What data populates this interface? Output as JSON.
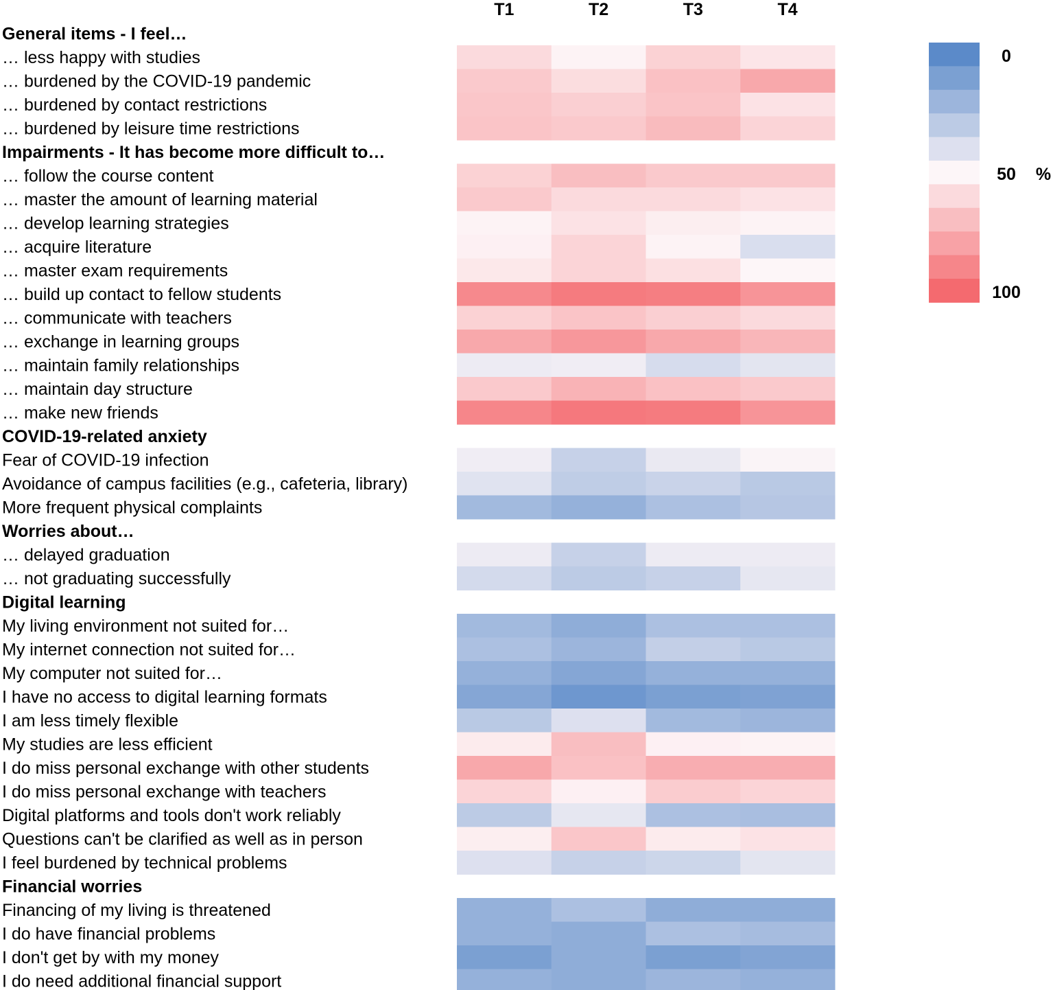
{
  "chart_data": {
    "type": "heatmap",
    "columns": [
      "T1",
      "T2",
      "T3",
      "T4"
    ],
    "value_range": [
      0,
      100
    ],
    "unit": "%",
    "legend": {
      "min_label": "0",
      "mid_label": "50",
      "max_label": "100",
      "unit_label": "%",
      "position": "right",
      "steps": 11
    },
    "color_scale": {
      "low": "#5b8ac9",
      "mid": "#fdf6f8",
      "high": "#f46a6f"
    },
    "rows": [
      {
        "type": "header",
        "label": "General items - I feel…"
      },
      {
        "type": "row",
        "label": "… less happy with studies",
        "values": [
          60,
          51,
          63,
          56
        ]
      },
      {
        "type": "row",
        "label": "… burdened by the COVID-19 pandemic",
        "values": [
          66,
          59,
          69,
          78
        ]
      },
      {
        "type": "row",
        "label": "… burdened by contact restrictions",
        "values": [
          67,
          64,
          68,
          57
        ]
      },
      {
        "type": "row",
        "label": "… burdened by leisure time restrictions",
        "values": [
          68,
          66,
          71,
          62
        ]
      },
      {
        "type": "header",
        "label": "Impairments - It has become more difficult to…"
      },
      {
        "type": "row",
        "label": "… follow the course content",
        "values": [
          63,
          70,
          66,
          66
        ]
      },
      {
        "type": "row",
        "label": "… master the amount of learning material",
        "values": [
          66,
          60,
          60,
          57
        ]
      },
      {
        "type": "row",
        "label": "… develop learning strategies",
        "values": [
          51,
          57,
          53,
          51
        ]
      },
      {
        "type": "row",
        "label": "… acquire literature",
        "values": [
          52,
          62,
          51,
          39
        ]
      },
      {
        "type": "row",
        "label": "… master exam requirements",
        "values": [
          55,
          62,
          58,
          50
        ]
      },
      {
        "type": "row",
        "label": "… build up contact to fellow students",
        "values": [
          89,
          94,
          93,
          85
        ]
      },
      {
        "type": "row",
        "label": "… communicate with teachers",
        "values": [
          63,
          68,
          64,
          60
        ]
      },
      {
        "type": "row",
        "label": "… exchange in learning groups",
        "values": [
          78,
          84,
          78,
          73
        ]
      },
      {
        "type": "row",
        "label": "… maintain family relationships",
        "values": [
          45,
          46,
          38,
          42
        ]
      },
      {
        "type": "row",
        "label": "… maintain day structure",
        "values": [
          66,
          74,
          69,
          66
        ]
      },
      {
        "type": "row",
        "label": "… make new friends",
        "values": [
          90,
          95,
          94,
          85
        ]
      },
      {
        "type": "header",
        "label": "COVID-19-related anxiety"
      },
      {
        "type": "row",
        "label": "Fear of COVID-19 infection",
        "values": [
          46,
          33,
          44,
          49
        ]
      },
      {
        "type": "row",
        "label": "Avoidance of campus facilities (e.g., cafeteria, library)",
        "values": [
          41,
          31,
          34,
          29
        ]
      },
      {
        "type": "row",
        "label": "More frequent physical complaints",
        "values": [
          22,
          18,
          25,
          28
        ]
      },
      {
        "type": "header",
        "label": "Worries about…"
      },
      {
        "type": "row",
        "label": "… delayed graduation",
        "values": [
          45,
          33,
          45,
          45
        ]
      },
      {
        "type": "row",
        "label": "… not graduating successfully",
        "values": [
          37,
          30,
          33,
          43
        ]
      },
      {
        "type": "header",
        "label": "Digital learning"
      },
      {
        "type": "row",
        "label": "My living environment not suited for…",
        "values": [
          22,
          16,
          25,
          25
        ]
      },
      {
        "type": "row",
        "label": "My internet connection not suited for…",
        "values": [
          25,
          20,
          32,
          29
        ]
      },
      {
        "type": "row",
        "label": "My computer not suited for…",
        "values": [
          18,
          13,
          18,
          18
        ]
      },
      {
        "type": "row",
        "label": "I have no access to digital learning formats",
        "values": [
          13,
          6,
          10,
          11
        ]
      },
      {
        "type": "row",
        "label": "I am less timely flexible",
        "values": [
          29,
          40,
          22,
          20
        ]
      },
      {
        "type": "row",
        "label": "My studies are less efficient",
        "values": [
          54,
          70,
          52,
          51
        ]
      },
      {
        "type": "row",
        "label": "I do miss personal exchange with other students",
        "values": [
          78,
          69,
          76,
          76
        ]
      },
      {
        "type": "row",
        "label": "I do miss personal exchange with teachers",
        "values": [
          62,
          52,
          65,
          62
        ]
      },
      {
        "type": "row",
        "label": "Digital platforms and tools don't work reliably",
        "values": [
          30,
          43,
          25,
          24
        ]
      },
      {
        "type": "row",
        "label": "Questions can't be clarified as well as in person",
        "values": [
          53,
          67,
          54,
          57
        ]
      },
      {
        "type": "row",
        "label": "I feel burdened by technical problems",
        "values": [
          40,
          33,
          35,
          42
        ]
      },
      {
        "type": "header",
        "label": "Financial worries"
      },
      {
        "type": "row",
        "label": "Financing of my living is threatened",
        "values": [
          18,
          25,
          16,
          16
        ]
      },
      {
        "type": "row",
        "label": "I do have financial problems",
        "values": [
          18,
          16,
          25,
          23
        ]
      },
      {
        "type": "row",
        "label": "I don't get by with my money",
        "values": [
          10,
          16,
          10,
          12
        ]
      },
      {
        "type": "row",
        "label": "I do need additional financial support",
        "values": [
          18,
          16,
          20,
          18
        ]
      }
    ]
  }
}
